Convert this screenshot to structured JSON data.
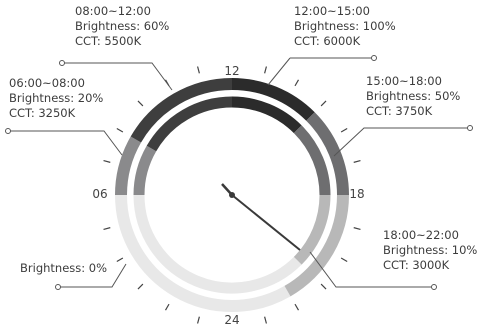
{
  "hour_labels": {
    "top": "12",
    "right": "18",
    "bottom": "24",
    "left": "06"
  },
  "schedule": [
    {
      "time": "06:00~08:00",
      "brightness": "Brightness: 20%",
      "cct": "CCT: 3250K",
      "level": 0.2
    },
    {
      "time": "08:00~12:00",
      "brightness": "Brightness: 60%",
      "cct": "CCT: 5500K",
      "level": 0.6
    },
    {
      "time": "12:00~15:00",
      "brightness": "Brightness: 100%",
      "cct": "CCT: 6000K",
      "level": 1.0
    },
    {
      "time": "15:00~18:00",
      "brightness": "Brightness: 50%",
      "cct": "CCT: 3750K",
      "level": 0.5
    },
    {
      "time": "18:00~22:00",
      "brightness": "Brightness: 10%",
      "cct": "CCT: 3000K",
      "level": 0.1
    },
    {
      "time": "",
      "brightness": "Brightness: 0%",
      "cct": "",
      "level": 0.0
    }
  ],
  "colors": {
    "level_100": "#2b2b2b",
    "level_60": "#3e3e3e",
    "level_50": "#6e6e70",
    "level_20": "#8a8a8c",
    "level_10": "#b8b8b8",
    "level_0": "#e8e8e8",
    "leader": "#555555",
    "tick": "#444444",
    "hand": "#3a3a3a"
  }
}
